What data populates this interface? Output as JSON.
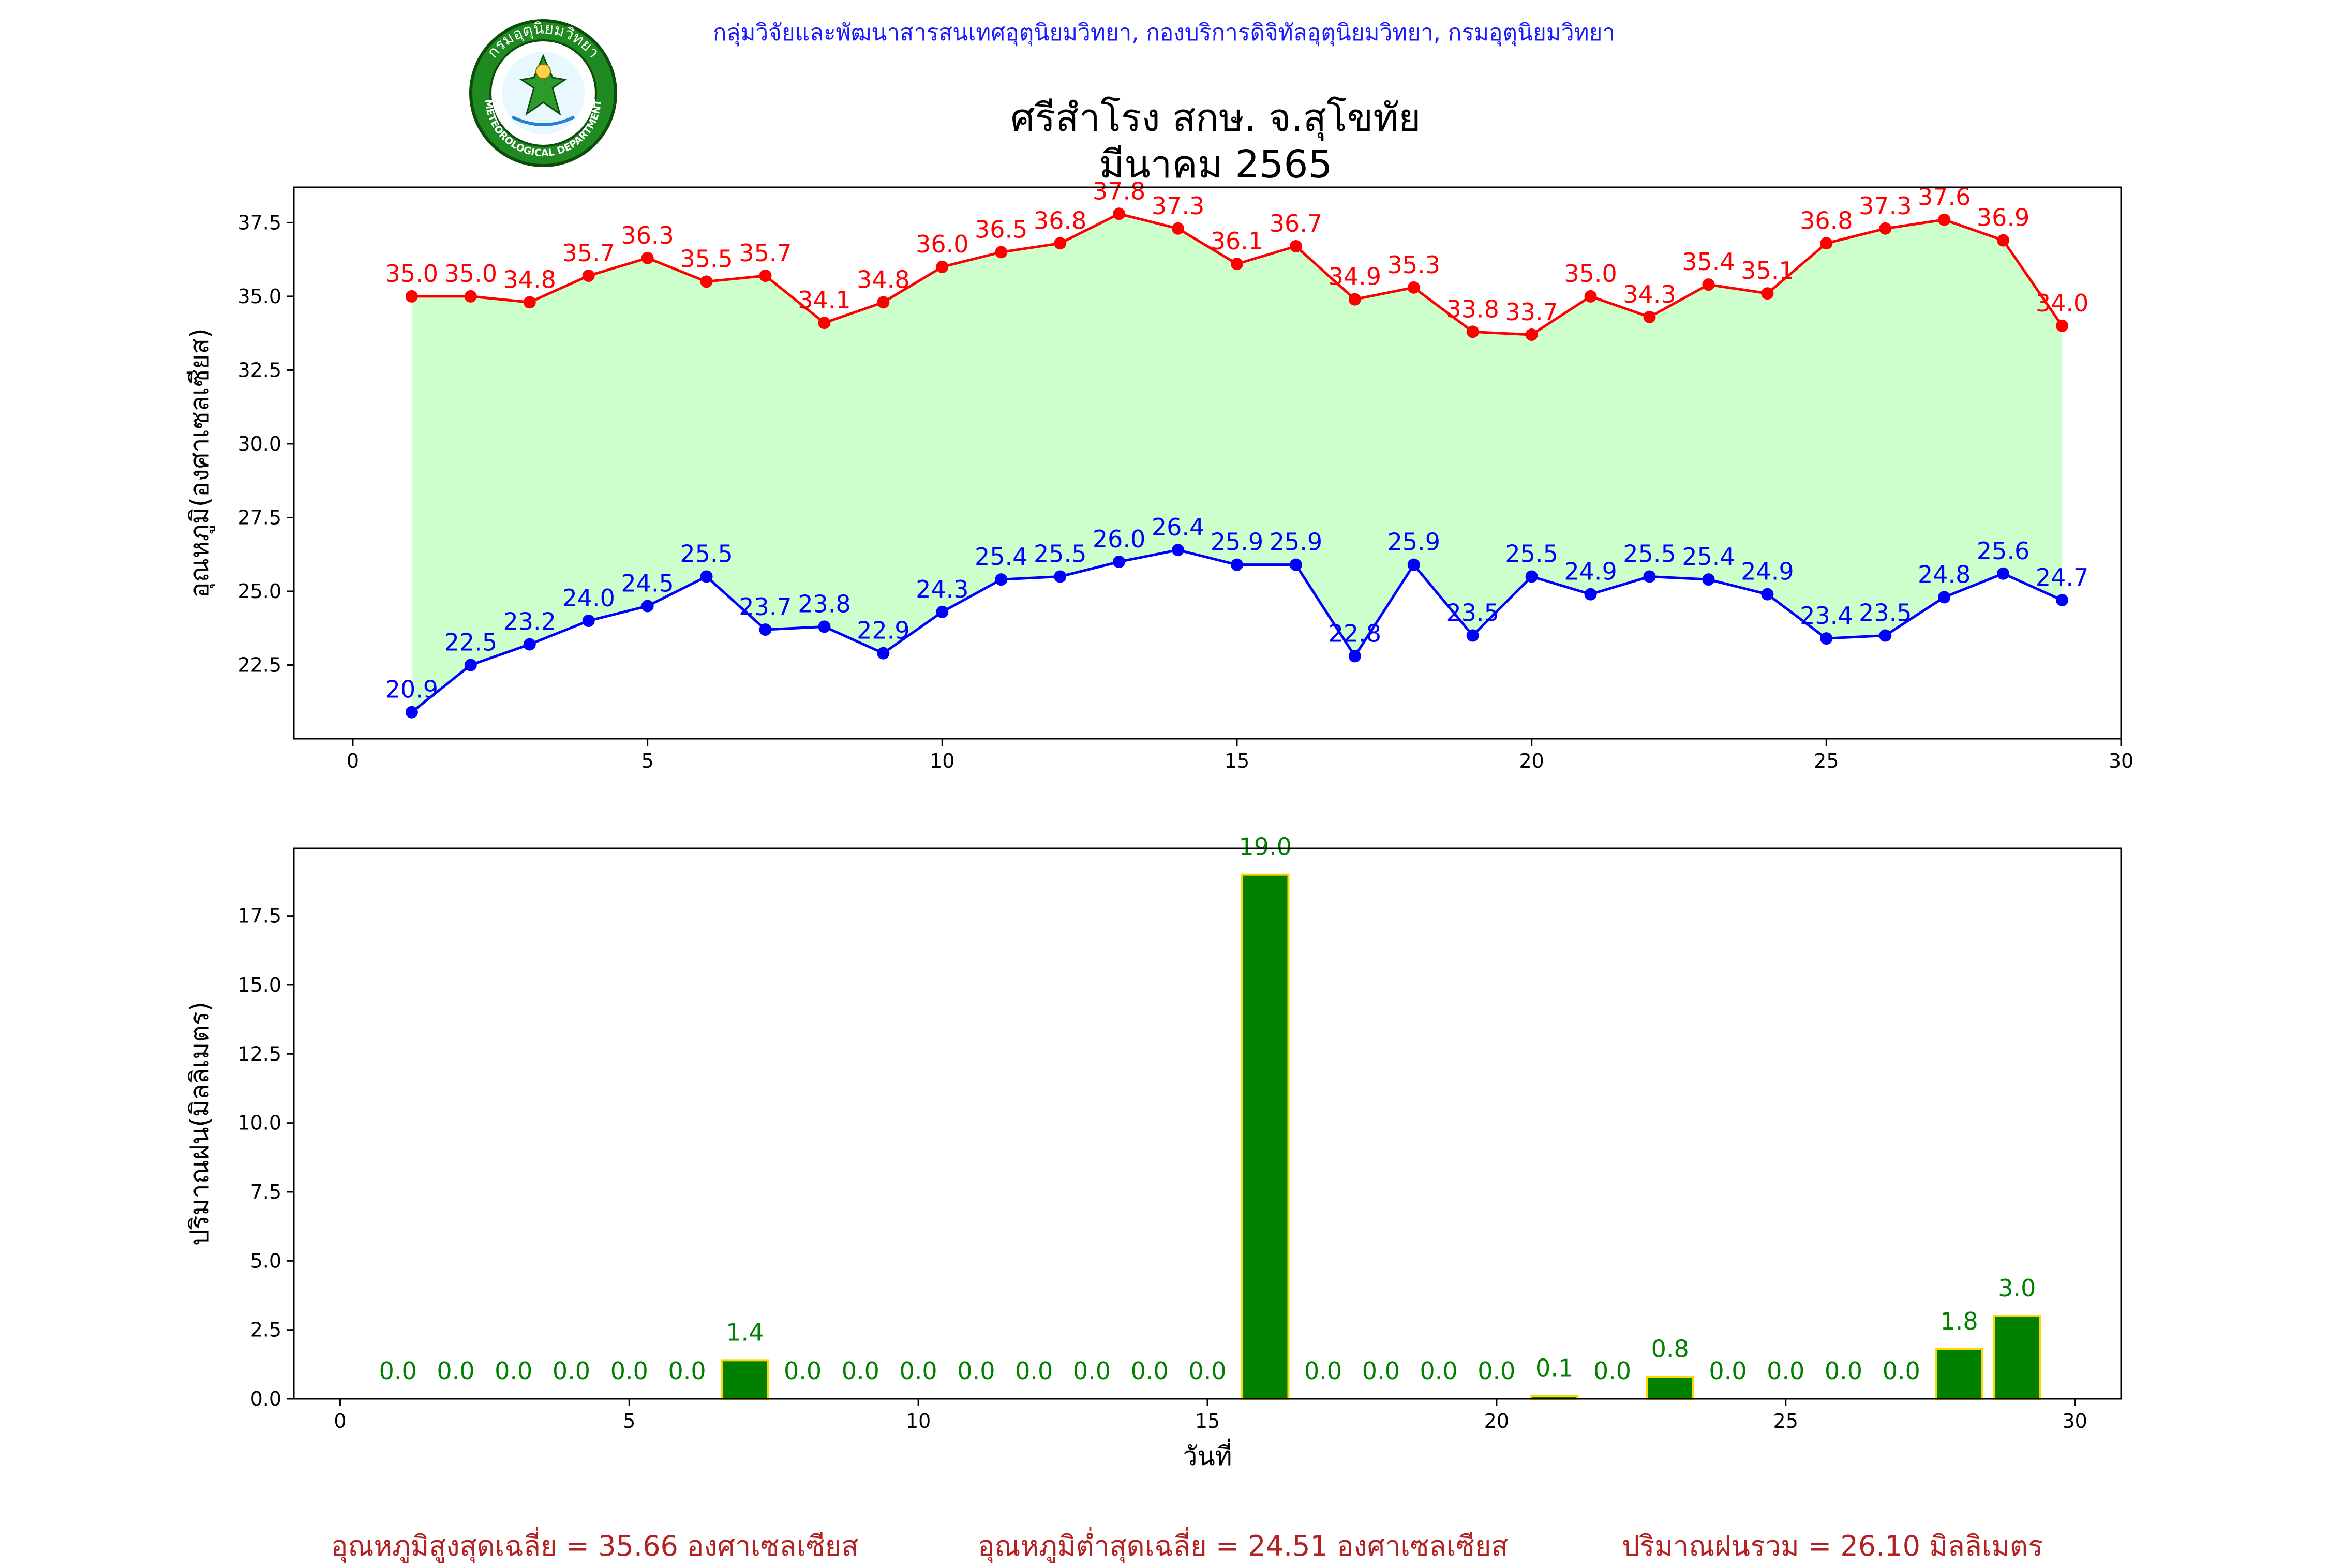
{
  "header": {
    "agency_line": "กลุ่มวิจัยและพัฒนาสารสนเทศอุตุนิยมวิทยา, กองบริการดิจิทัลอุตุนิยมวิทยา, กรมอุตุนิยมวิทยา",
    "station": "ศรีสำโรง สกษ. จ.สุโขทัย",
    "period": "มีนาคม 2565",
    "logo_text": "กรมอุตุนิยมวิทยา",
    "logo_text_en": "METEOROLOGICAL DEPARTMENT"
  },
  "summary": {
    "avg_max": "อุณหภูมิสูงสุดเฉลี่ย = 35.66 องศาเซลเซียส",
    "avg_min": "อุณหภูมิต่ำสุดเฉลี่ย = 24.51 องศาเซลเซียส",
    "total_rain": "ปริมาณฝนรวม = 26.10 มิลลิเมตร"
  },
  "colors": {
    "max_line": "#ff0000",
    "min_line": "#0000ff",
    "fill": "#ccffcc",
    "bar_fill": "#008000",
    "bar_edge": "#ffd700",
    "bar_label": "#008000",
    "summary_text": "#b22222"
  },
  "chart_data": [
    {
      "type": "line",
      "x": [
        1,
        2,
        3,
        4,
        5,
        6,
        7,
        8,
        9,
        10,
        11,
        12,
        13,
        14,
        15,
        16,
        17,
        18,
        19,
        20,
        21,
        22,
        23,
        24,
        25,
        26,
        27,
        28,
        29
      ],
      "series": [
        {
          "values": [
            35.0,
            35.0,
            34.8,
            35.7,
            36.3,
            35.5,
            35.7,
            34.1,
            34.8,
            36.0,
            36.5,
            36.8,
            37.8,
            37.3,
            36.1,
            36.7,
            34.9,
            35.3,
            33.8,
            33.7,
            35.0,
            34.3,
            35.4,
            35.1,
            36.8,
            37.3,
            37.6,
            36.9,
            34.0
          ]
        },
        {
          "values": [
            20.9,
            22.5,
            23.2,
            24.0,
            24.5,
            25.5,
            23.7,
            23.8,
            22.9,
            24.3,
            25.4,
            25.5,
            26.0,
            26.4,
            25.9,
            25.9,
            22.8,
            25.9,
            23.5,
            25.5,
            24.9,
            25.5,
            25.4,
            24.9,
            23.4,
            23.5,
            24.8,
            25.6,
            24.7
          ]
        }
      ],
      "ylabel": "อุณหภูมิ(องศาเซลเซียส)",
      "xlim": [
        -1,
        30
      ],
      "ylim": [
        20.0,
        38.7
      ],
      "xticks": [
        0,
        5,
        10,
        15,
        20,
        25,
        30
      ],
      "yticks": [
        "22.5",
        "25.0",
        "27.5",
        "30.0",
        "32.5",
        "35.0",
        "37.5"
      ],
      "grid": false
    },
    {
      "type": "bar",
      "x": [
        1,
        2,
        3,
        4,
        5,
        6,
        7,
        8,
        9,
        10,
        11,
        12,
        13,
        14,
        15,
        16,
        17,
        18,
        19,
        20,
        21,
        22,
        23,
        24,
        25,
        26,
        27,
        28,
        29
      ],
      "values": [
        0.0,
        0.0,
        0.0,
        0.0,
        0.0,
        0.0,
        1.4,
        0.0,
        0.0,
        0.0,
        0.0,
        0.0,
        0.0,
        0.0,
        0.0,
        19.0,
        0.0,
        0.0,
        0.0,
        0.0,
        0.1,
        0.0,
        0.8,
        0.0,
        0.0,
        0.0,
        0.0,
        1.8,
        3.0
      ],
      "xlabel": "วันที่",
      "ylabel": "ปริมาณฝน(มิลลิเมตร)",
      "xlim": [
        -0.8,
        30.8
      ],
      "ylim": [
        0,
        19.95
      ],
      "xticks": [
        0,
        5,
        10,
        15,
        20,
        25,
        30
      ],
      "yticks": [
        "0.0",
        "2.5",
        "5.0",
        "7.5",
        "10.0",
        "12.5",
        "15.0",
        "17.5"
      ],
      "grid": false
    }
  ]
}
